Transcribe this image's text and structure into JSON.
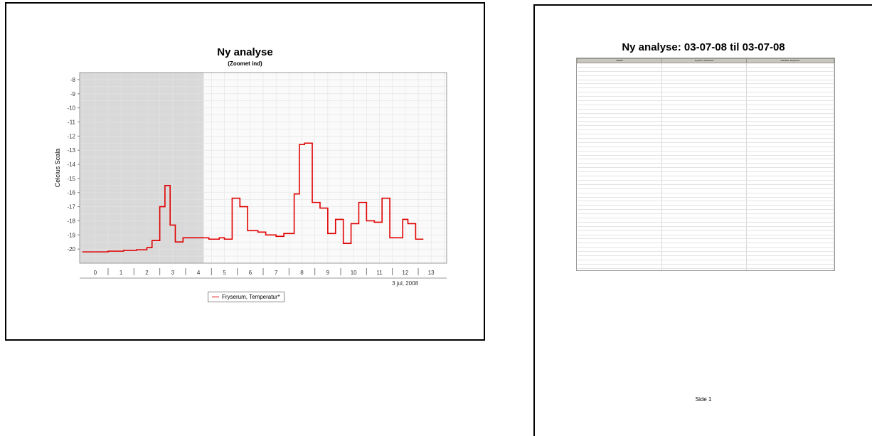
{
  "chart_data": {
    "type": "line",
    "title": "Ny analyse",
    "subtitle": "(Zoomet ind)",
    "ylabel": "Celcius Scala",
    "xlabel": "",
    "date_label": "3 jul, 2008",
    "ylim": [
      -21,
      -7.5
    ],
    "xlim": [
      -0.6,
      13.6
    ],
    "y_ticks": [
      -8,
      -9,
      -10,
      -11,
      -12,
      -13,
      -14,
      -15,
      -16,
      -17,
      -18,
      -19,
      -20
    ],
    "x_ticks": [
      0,
      1,
      2,
      3,
      4,
      5,
      6,
      7,
      8,
      9,
      10,
      11,
      12,
      13
    ],
    "grid": true,
    "shaded_region": [
      -0.6,
      4.2
    ],
    "legend_position": "bottom",
    "series": [
      {
        "name": "Fryserum, Temperatur*",
        "color": "#e00000",
        "step": true,
        "x": [
          -0.5,
          -0.1,
          0.5,
          1.1,
          1.6,
          2.0,
          2.2,
          2.5,
          2.7,
          2.9,
          3.1,
          3.4,
          3.6,
          3.9,
          4.4,
          4.8,
          5.0,
          5.3,
          5.6,
          5.9,
          6.3,
          6.6,
          7.0,
          7.3,
          7.7,
          7.9,
          8.1,
          8.4,
          8.7,
          9.0,
          9.3,
          9.6,
          9.9,
          10.2,
          10.5,
          10.8,
          11.1,
          11.4,
          11.7,
          11.9,
          12.1,
          12.4
        ],
        "y": [
          -20.2,
          -20.2,
          -20.15,
          -20.1,
          -20.05,
          -19.9,
          -19.4,
          -17.0,
          -15.5,
          -18.3,
          -19.5,
          -19.2,
          -19.2,
          -19.2,
          -19.3,
          -19.2,
          -19.3,
          -16.4,
          -17.0,
          -18.7,
          -18.8,
          -19.0,
          -19.1,
          -18.9,
          -16.1,
          -12.6,
          -12.5,
          -16.7,
          -17.1,
          -18.9,
          -17.9,
          -19.6,
          -18.2,
          -16.7,
          -18.0,
          -18.1,
          -16.4,
          -19.2,
          -19.2,
          -17.9,
          -18.2,
          -19.3
        ],
        "x_end": 12.7
      }
    ]
  },
  "report": {
    "title": "Ny analyse: 03-07-08 til 03-07-08",
    "columns": [
      "Dato/tid",
      "Fryserum, Temperatur*",
      "Udendørs, Temperatur*"
    ],
    "row_count": 56,
    "footer": "Side 1"
  }
}
